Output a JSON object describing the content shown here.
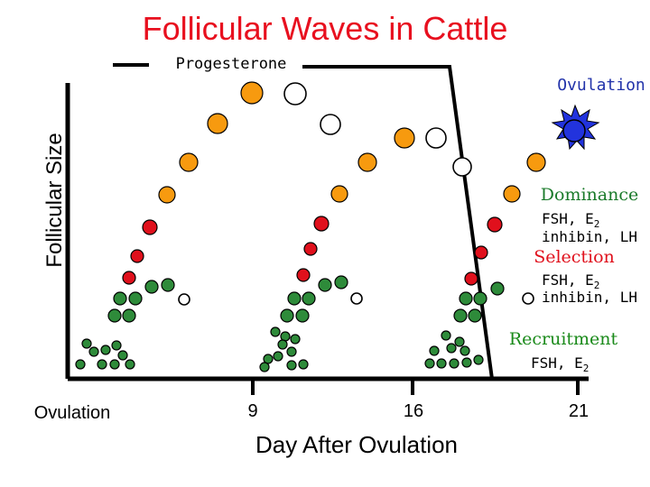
{
  "title": "Follicular Waves in Cattle",
  "y_axis_label": "Follicular Size",
  "x_axis_label": "Day After Ovulation",
  "x_ticks": [
    "Ovulation",
    "9",
    "16",
    "21"
  ],
  "progesterone_label": "Progesterone",
  "ovulation_label": "Ovulation",
  "stages": {
    "dominance": {
      "label": "Dominance",
      "hormones_line1": "FSH, E",
      "hormones_sub1": "2",
      "hormones_line2": "inhibin, LH"
    },
    "selection": {
      "label": "Selection",
      "hormones_line1": "FSH, E",
      "hormones_sub1": "2",
      "hormones_line2": "inhibin, LH"
    },
    "recruitment": {
      "label": "Recruitment",
      "hormones_line1": "FSH, E",
      "hormones_sub1": "2"
    }
  },
  "colors": {
    "title": "#e8101f",
    "dominant": "#f79a0f",
    "selected": "#e0101c",
    "recruited": "#2e8b3a",
    "atretic": "#ffffff",
    "ovulatory": "#2233dd",
    "dominance_text": "#1a7a2a",
    "selection_text": "#e0101c",
    "recruitment_text": "#1a8a1a",
    "ovulation_text": "#2233aa"
  }
}
